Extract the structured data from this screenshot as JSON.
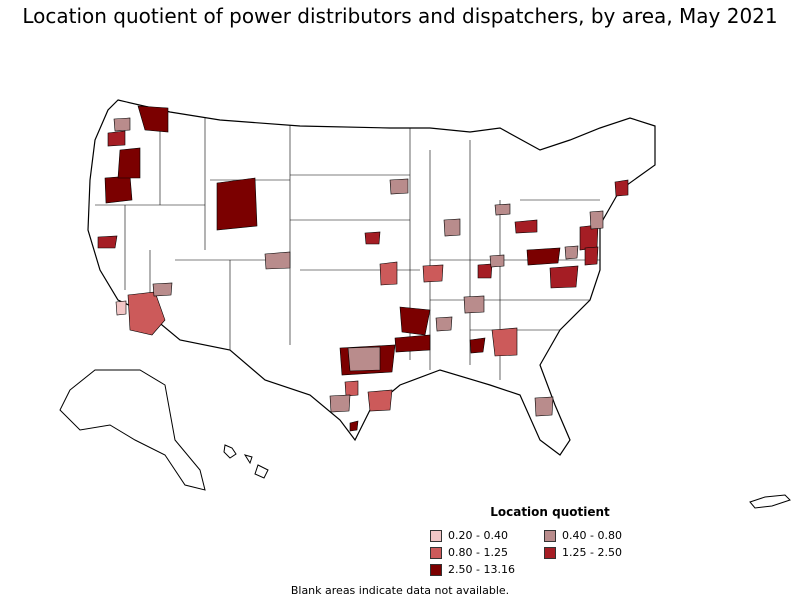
{
  "map": {
    "title": "Location quotient of power distributors and dispatchers, by area, May 2021",
    "legend_title": "Location quotient",
    "legend": [
      {
        "label": "0.20 - 0.40",
        "color": "#f2c6c6"
      },
      {
        "label": "0.40 - 0.80",
        "color": "#b98c8c"
      },
      {
        "label": "0.80 - 1.25",
        "color": "#cc5a5a"
      },
      {
        "label": "1.25 - 2.50",
        "color": "#a51d24"
      },
      {
        "label": "2.50 - 13.16",
        "color": "#7b0000"
      }
    ],
    "note": "Blank areas indicate data not available."
  }
}
